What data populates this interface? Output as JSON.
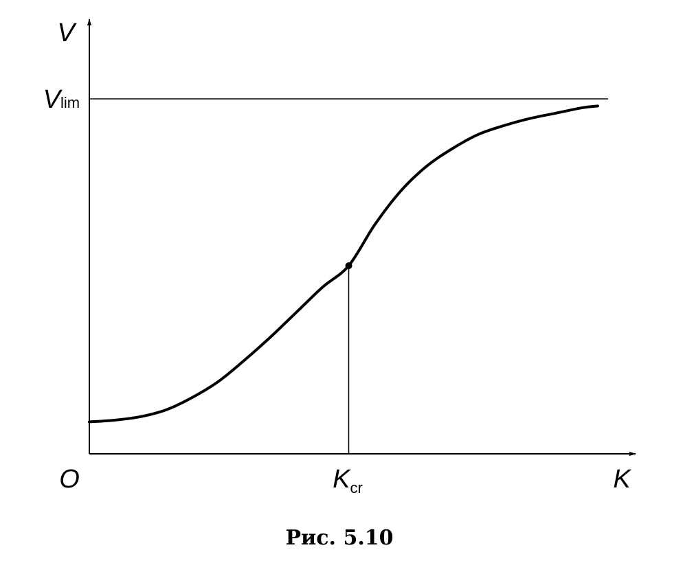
{
  "chart_data": {
    "type": "line",
    "title": "",
    "xlabel": "K",
    "ylabel": "V",
    "origin_label": "O",
    "x_ticks": [
      {
        "main": "K",
        "sub": "cr",
        "x": 0.5
      }
    ],
    "y_ticks": [
      {
        "main": "V",
        "sub": "lim",
        "y": 1.0
      }
    ],
    "xlim": [
      0,
      1.0
    ],
    "ylim": [
      0,
      1.15
    ],
    "asymptote": {
      "y": 1.0,
      "label_main": "V",
      "label_sub": "lim"
    },
    "critical_point": {
      "x": 0.5,
      "y": 0.53
    },
    "series": [
      {
        "x": [
          0.0,
          0.05,
          0.1,
          0.15,
          0.2,
          0.25,
          0.3,
          0.35,
          0.4,
          0.45,
          0.5,
          0.55,
          0.6,
          0.65,
          0.7,
          0.75,
          0.8,
          0.85,
          0.9,
          0.95,
          0.98
        ],
        "y": [
          0.09,
          0.095,
          0.105,
          0.125,
          0.16,
          0.205,
          0.265,
          0.33,
          0.4,
          0.47,
          0.53,
          0.645,
          0.74,
          0.81,
          0.86,
          0.9,
          0.925,
          0.945,
          0.96,
          0.975,
          0.98
        ]
      }
    ],
    "grid": false,
    "legend": "none"
  },
  "caption": "Рис. 5.10"
}
